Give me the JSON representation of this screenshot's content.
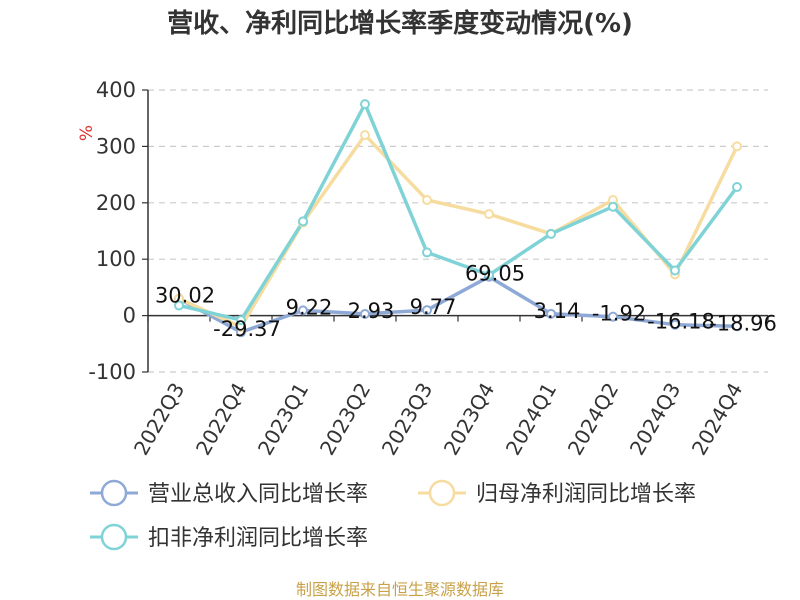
{
  "chart_data": {
    "type": "line",
    "title": "营收、净利同比增长率季度变动情况(%)",
    "unit_label": "%",
    "categories": [
      "2022Q3",
      "2022Q4",
      "2023Q1",
      "2023Q2",
      "2023Q3",
      "2023Q4",
      "2024Q1",
      "2024Q2",
      "2024Q3",
      "2024Q4"
    ],
    "ylim": [
      -100,
      400
    ],
    "yticks": [
      -100,
      0,
      100,
      200,
      300,
      400
    ],
    "grid": true,
    "legend_position": "bottom",
    "series": [
      {
        "name": "营业总收入同比增长率",
        "color": "#8fa9d6",
        "values": [
          30.02,
          -29.37,
          9.22,
          2.93,
          9.77,
          69.05,
          3.14,
          -1.92,
          -16.18,
          -18.96
        ],
        "labels": [
          "30.02",
          "-29.37",
          "9.22",
          "2.93",
          "9.77",
          "69.05",
          "3.14",
          "-1.92",
          "-16.18",
          "-18.96"
        ]
      },
      {
        "name": "归母净利润同比增长率",
        "color": "#f7dca0",
        "values": [
          30,
          -20,
          165,
          320,
          205,
          180,
          145,
          205,
          73,
          300
        ]
      },
      {
        "name": "扣非净利润同比增长率",
        "color": "#7fd3d6",
        "values": [
          18,
          -8,
          167,
          375,
          112,
          72,
          145,
          193,
          80,
          228
        ]
      }
    ]
  },
  "source_text": "制图数据来自恒生聚源数据库"
}
